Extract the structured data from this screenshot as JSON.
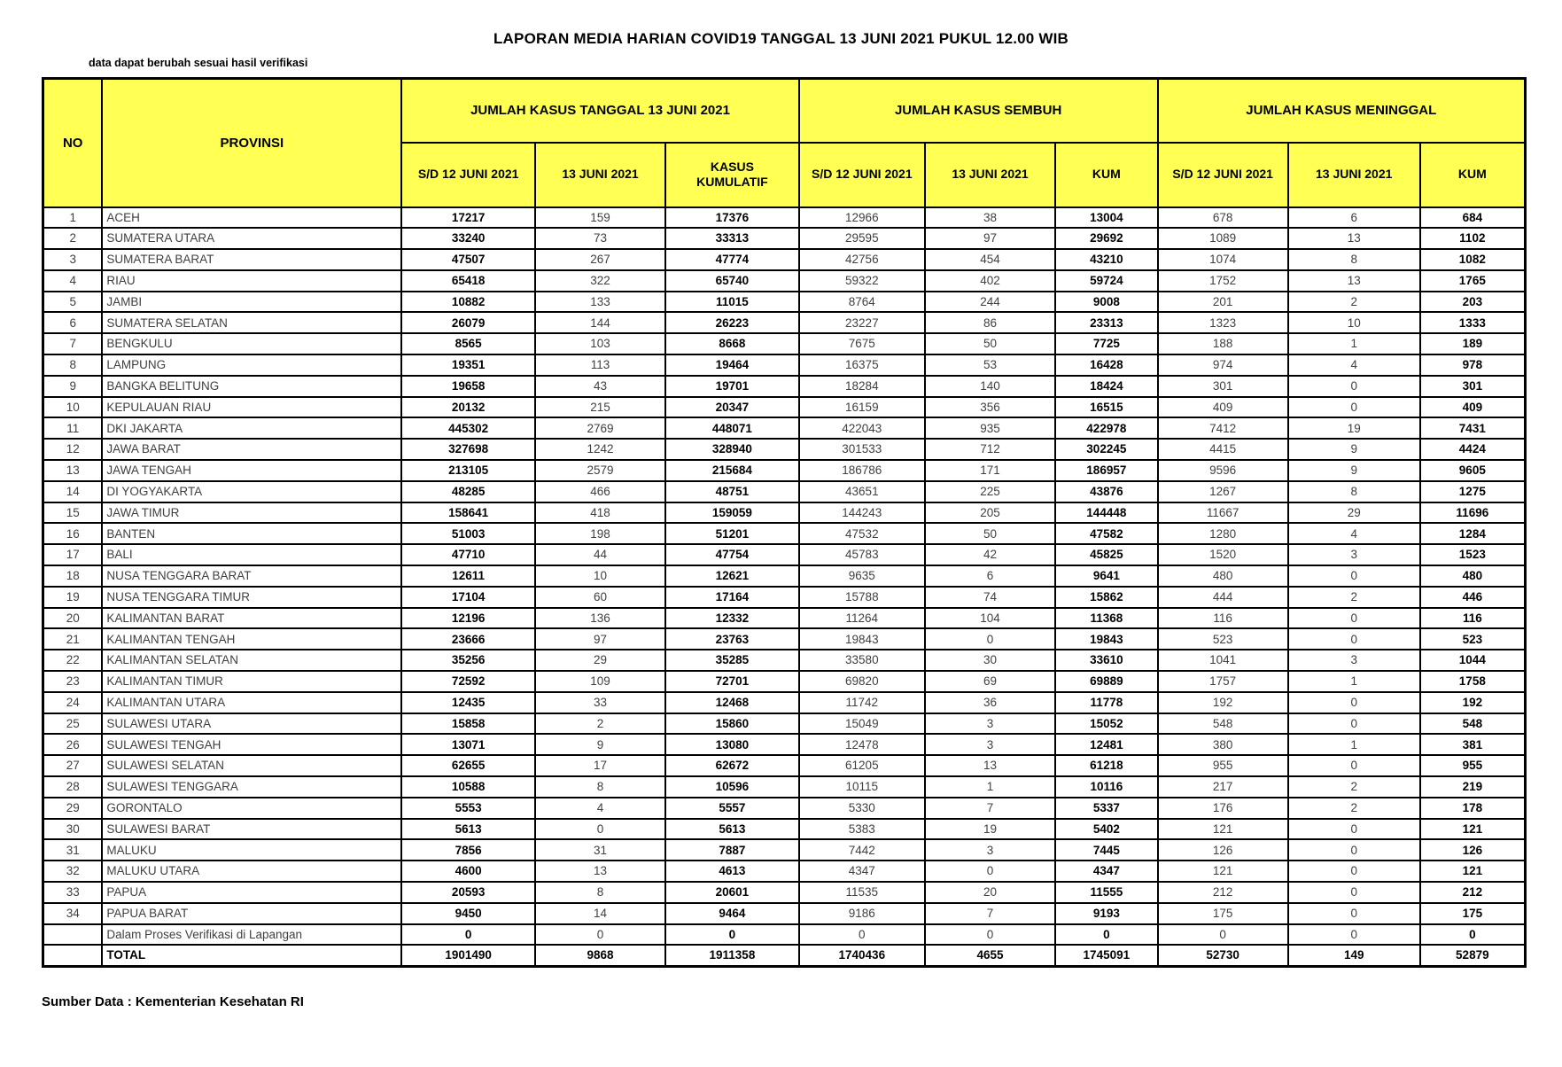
{
  "title": "LAPORAN MEDIA HARIAN COVID19 TANGGAL 13 JUNI 2021 PUKUL 12.00 WIB",
  "note": "data dapat berubah sesuai hasil verifikasi",
  "source": "Sumber Data : Kementerian Kesehatan RI",
  "colors": {
    "header_bg": "#FFFF54",
    "border": "#000000",
    "bold_text": "#000000",
    "normal_text": "#404040"
  },
  "table": {
    "col_no": "NO",
    "col_provinsi": "PROVINSI",
    "groups": [
      {
        "label": "JUMLAH KASUS TANGGAL 13 JUNI 2021",
        "cols": [
          "S/D 12 JUNI 2021",
          "13 JUNI 2021",
          "KASUS KUMULATIF"
        ]
      },
      {
        "label": "JUMLAH KASUS SEMBUH",
        "cols": [
          "S/D 12 JUNI 2021",
          "13 JUNI 2021",
          "KUM"
        ]
      },
      {
        "label": "JUMLAH KASUS MENINGGAL",
        "cols": [
          "S/D 12 JUNI 2021",
          "13 JUNI 2021",
          "KUM"
        ]
      }
    ],
    "bold_value_columns": [
      0,
      2,
      5,
      8
    ],
    "rows": [
      [
        "1",
        "ACEH",
        17217,
        159,
        17376,
        12966,
        38,
        13004,
        678,
        6,
        684
      ],
      [
        "2",
        "SUMATERA UTARA",
        33240,
        73,
        33313,
        29595,
        97,
        29692,
        1089,
        13,
        1102
      ],
      [
        "3",
        "SUMATERA BARAT",
        47507,
        267,
        47774,
        42756,
        454,
        43210,
        1074,
        8,
        1082
      ],
      [
        "4",
        "RIAU",
        65418,
        322,
        65740,
        59322,
        402,
        59724,
        1752,
        13,
        1765
      ],
      [
        "5",
        "JAMBI",
        10882,
        133,
        11015,
        8764,
        244,
        9008,
        201,
        2,
        203
      ],
      [
        "6",
        "SUMATERA SELATAN",
        26079,
        144,
        26223,
        23227,
        86,
        23313,
        1323,
        10,
        1333
      ],
      [
        "7",
        "BENGKULU",
        8565,
        103,
        8668,
        7675,
        50,
        7725,
        188,
        1,
        189
      ],
      [
        "8",
        "LAMPUNG",
        19351,
        113,
        19464,
        16375,
        53,
        16428,
        974,
        4,
        978
      ],
      [
        "9",
        "BANGKA BELITUNG",
        19658,
        43,
        19701,
        18284,
        140,
        18424,
        301,
        0,
        301
      ],
      [
        "10",
        "KEPULAUAN RIAU",
        20132,
        215,
        20347,
        16159,
        356,
        16515,
        409,
        0,
        409
      ],
      [
        "11",
        "DKI JAKARTA",
        445302,
        2769,
        448071,
        422043,
        935,
        422978,
        7412,
        19,
        7431
      ],
      [
        "12",
        "JAWA BARAT",
        327698,
        1242,
        328940,
        301533,
        712,
        302245,
        4415,
        9,
        4424
      ],
      [
        "13",
        "JAWA TENGAH",
        213105,
        2579,
        215684,
        186786,
        171,
        186957,
        9596,
        9,
        9605
      ],
      [
        "14",
        "DI YOGYAKARTA",
        48285,
        466,
        48751,
        43651,
        225,
        43876,
        1267,
        8,
        1275
      ],
      [
        "15",
        "JAWA TIMUR",
        158641,
        418,
        159059,
        144243,
        205,
        144448,
        11667,
        29,
        11696
      ],
      [
        "16",
        "BANTEN",
        51003,
        198,
        51201,
        47532,
        50,
        47582,
        1280,
        4,
        1284
      ],
      [
        "17",
        "BALI",
        47710,
        44,
        47754,
        45783,
        42,
        45825,
        1520,
        3,
        1523
      ],
      [
        "18",
        "NUSA TENGGARA BARAT",
        12611,
        10,
        12621,
        9635,
        6,
        9641,
        480,
        0,
        480
      ],
      [
        "19",
        "NUSA TENGGARA TIMUR",
        17104,
        60,
        17164,
        15788,
        74,
        15862,
        444,
        2,
        446
      ],
      [
        "20",
        "KALIMANTAN BARAT",
        12196,
        136,
        12332,
        11264,
        104,
        11368,
        116,
        0,
        116
      ],
      [
        "21",
        "KALIMANTAN TENGAH",
        23666,
        97,
        23763,
        19843,
        0,
        19843,
        523,
        0,
        523
      ],
      [
        "22",
        "KALIMANTAN SELATAN",
        35256,
        29,
        35285,
        33580,
        30,
        33610,
        1041,
        3,
        1044
      ],
      [
        "23",
        "KALIMANTAN TIMUR",
        72592,
        109,
        72701,
        69820,
        69,
        69889,
        1757,
        1,
        1758
      ],
      [
        "24",
        "KALIMANTAN UTARA",
        12435,
        33,
        12468,
        11742,
        36,
        11778,
        192,
        0,
        192
      ],
      [
        "25",
        "SULAWESI UTARA",
        15858,
        2,
        15860,
        15049,
        3,
        15052,
        548,
        0,
        548
      ],
      [
        "26",
        "SULAWESI TENGAH",
        13071,
        9,
        13080,
        12478,
        3,
        12481,
        380,
        1,
        381
      ],
      [
        "27",
        "SULAWESI SELATAN",
        62655,
        17,
        62672,
        61205,
        13,
        61218,
        955,
        0,
        955
      ],
      [
        "28",
        "SULAWESI TENGGARA",
        10588,
        8,
        10596,
        10115,
        1,
        10116,
        217,
        2,
        219
      ],
      [
        "29",
        "GORONTALO",
        5553,
        4,
        5557,
        5330,
        7,
        5337,
        176,
        2,
        178
      ],
      [
        "30",
        "SULAWESI BARAT",
        5613,
        0,
        5613,
        5383,
        19,
        5402,
        121,
        0,
        121
      ],
      [
        "31",
        "MALUKU",
        7856,
        31,
        7887,
        7442,
        3,
        7445,
        126,
        0,
        126
      ],
      [
        "32",
        "MALUKU UTARA",
        4600,
        13,
        4613,
        4347,
        0,
        4347,
        121,
        0,
        121
      ],
      [
        "33",
        "PAPUA",
        20593,
        8,
        20601,
        11535,
        20,
        11555,
        212,
        0,
        212
      ],
      [
        "34",
        "PAPUA BARAT",
        9450,
        14,
        9464,
        9186,
        7,
        9193,
        175,
        0,
        175
      ]
    ],
    "verification_row": {
      "no": "",
      "label": "Dalam Proses Verifikasi di Lapangan",
      "values": [
        0,
        0,
        0,
        0,
        0,
        0,
        0,
        0,
        0
      ]
    },
    "total_row": {
      "no": "",
      "label": "TOTAL",
      "values": [
        1901490,
        9868,
        1911358,
        1740436,
        4655,
        1745091,
        52730,
        149,
        52879
      ]
    }
  }
}
